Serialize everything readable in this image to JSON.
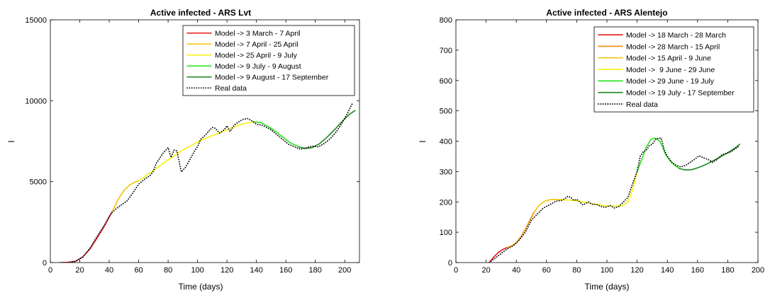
{
  "chart_data": [
    {
      "type": "line",
      "title": "Active infected - ARS Lvt",
      "xlabel": "Time (days)",
      "ylabel": "I",
      "xlim": [
        0,
        210
      ],
      "ylim": [
        0,
        15000
      ],
      "xticks": [
        0,
        20,
        40,
        60,
        80,
        100,
        120,
        140,
        160,
        180,
        200
      ],
      "yticks": [
        0,
        5000,
        10000,
        15000
      ],
      "legend_position": "top-right",
      "series": [
        {
          "name": "Model -> 3 March - 7 April",
          "color": "#e41a1c",
          "style": "solid",
          "x": [
            7,
            12,
            17,
            22,
            27,
            32,
            37,
            42
          ],
          "y": [
            0,
            15,
            80,
            350,
            850,
            1550,
            2300,
            3150
          ]
        },
        {
          "name": "Model -> 7 April - 25 April",
          "color": "#f2c400",
          "style": "solid",
          "x": [
            42,
            46,
            50,
            54,
            58,
            60
          ],
          "y": [
            3150,
            3900,
            4450,
            4800,
            5000,
            5050
          ]
        },
        {
          "name": "Model -> 25 April - 9 July",
          "color": "#f7f20a",
          "style": "solid",
          "x": [
            60,
            70,
            80,
            90,
            100,
            110,
            120,
            130,
            138
          ],
          "y": [
            5050,
            5700,
            6350,
            6950,
            7450,
            7850,
            8200,
            8550,
            8700
          ]
        },
        {
          "name": "Model -> 9 July - 9 August",
          "color": "#22e41a",
          "style": "solid",
          "x": [
            138,
            143,
            148,
            153,
            158,
            163,
            169
          ],
          "y": [
            8700,
            8650,
            8400,
            8100,
            7750,
            7400,
            7150
          ]
        },
        {
          "name": "Model -> 9 August - 17 September",
          "color": "#1b8a1b",
          "style": "solid",
          "x": [
            169,
            173,
            178,
            183,
            188,
            193,
            198,
            203,
            207
          ],
          "y": [
            7150,
            7050,
            7100,
            7350,
            7750,
            8200,
            8700,
            9150,
            9400
          ]
        },
        {
          "name": "Real data",
          "color": "#000000",
          "style": "dotted",
          "x": [
            7,
            12,
            17,
            22,
            27,
            32,
            37,
            40,
            42,
            45,
            48,
            52,
            56,
            60,
            64,
            68,
            70,
            72,
            74,
            76,
            78,
            80,
            82,
            84,
            86,
            88,
            89,
            92,
            95,
            98,
            100,
            102,
            105,
            108,
            110,
            112,
            115,
            118,
            120,
            122,
            125,
            128,
            131,
            134,
            137,
            140,
            143,
            146,
            150,
            154,
            158,
            162,
            166,
            170,
            174,
            178,
            182,
            186,
            190,
            194,
            198,
            202,
            205
          ],
          "y": [
            0,
            15,
            70,
            330,
            900,
            1650,
            2350,
            2850,
            3100,
            3350,
            3550,
            3800,
            4300,
            4850,
            5150,
            5400,
            5650,
            6150,
            6400,
            6700,
            6900,
            7100,
            6500,
            6950,
            6900,
            6000,
            5600,
            5900,
            6400,
            6900,
            7150,
            7600,
            7850,
            8150,
            8350,
            8300,
            8000,
            8200,
            8450,
            8100,
            8500,
            8700,
            8850,
            8900,
            8750,
            8550,
            8500,
            8400,
            8200,
            7900,
            7600,
            7300,
            7150,
            7000,
            7100,
            7200,
            7150,
            7350,
            7650,
            8050,
            8600,
            9250,
            9800
          ]
        }
      ]
    },
    {
      "type": "line",
      "title": "Active infected - ARS Alentejo",
      "xlabel": "Time (days)",
      "ylabel": "I",
      "xlim": [
        0,
        200
      ],
      "ylim": [
        0,
        800
      ],
      "xticks": [
        0,
        20,
        40,
        60,
        80,
        100,
        120,
        140,
        160,
        180,
        200
      ],
      "yticks": [
        0,
        100,
        200,
        300,
        400,
        500,
        600,
        700,
        800
      ],
      "legend_position": "top-right",
      "series": [
        {
          "name": "Model -> 18 March - 28 March",
          "color": "#e41a1c",
          "style": "solid",
          "x": [
            22,
            25,
            28,
            31,
            34
          ],
          "y": [
            0,
            18,
            33,
            43,
            50
          ]
        },
        {
          "name": "Model -> 28 March - 15 April",
          "color": "#f08a00",
          "style": "solid",
          "x": [
            34,
            37,
            40,
            43,
            46,
            49,
            52
          ],
          "y": [
            50,
            55,
            65,
            85,
            110,
            140,
            168
          ]
        },
        {
          "name": "Model -> 15 April - 9 June",
          "color": "#f2c400",
          "style": "solid",
          "x": [
            52,
            55,
            58,
            61,
            64,
            67,
            70
          ],
          "y": [
            168,
            188,
            200,
            206,
            208,
            207,
            207
          ]
        },
        {
          "name": "Model ->  9 June - 29 June",
          "color": "#f7f20a",
          "style": "solid",
          "x": [
            70,
            78,
            86,
            92,
            98,
            104,
            110,
            114,
            117,
            120
          ],
          "y": [
            207,
            205,
            198,
            192,
            188,
            186,
            188,
            200,
            240,
            300
          ]
        },
        {
          "name": "Model -> 29 June - 19 July",
          "color": "#22e41a",
          "style": "solid",
          "x": [
            120,
            123,
            126,
            129,
            131,
            133,
            135,
            137,
            139,
            142,
            145,
            148
          ],
          "y": [
            300,
            340,
            380,
            405,
            410,
            408,
            400,
            380,
            355,
            335,
            320,
            310
          ]
        },
        {
          "name": "Model -> 19 July - 17 September",
          "color": "#1b8a1b",
          "style": "solid",
          "x": [
            148,
            152,
            156,
            160,
            165,
            170,
            175,
            180,
            185,
            188
          ],
          "y": [
            310,
            305,
            306,
            312,
            322,
            335,
            348,
            362,
            378,
            390
          ]
        },
        {
          "name": "Real data",
          "color": "#000000",
          "style": "dotted",
          "x": [
            22,
            26,
            30,
            34,
            38,
            42,
            46,
            50,
            54,
            58,
            62,
            66,
            70,
            72,
            74,
            76,
            78,
            80,
            82,
            84,
            86,
            88,
            90,
            93,
            96,
            99,
            102,
            105,
            108,
            111,
            114,
            117,
            120,
            122,
            124,
            126,
            128,
            130,
            132,
            134,
            136,
            138,
            140,
            143,
            146,
            149,
            152,
            155,
            158,
            161,
            164,
            167,
            170,
            173,
            176,
            179,
            182,
            185,
            188
          ],
          "y": [
            0,
            15,
            30,
            45,
            55,
            75,
            100,
            140,
            160,
            180,
            190,
            202,
            205,
            210,
            218,
            215,
            205,
            208,
            200,
            190,
            195,
            200,
            192,
            192,
            185,
            182,
            188,
            180,
            185,
            200,
            215,
            260,
            300,
            350,
            365,
            370,
            385,
            390,
            405,
            410,
            410,
            370,
            350,
            330,
            320,
            315,
            320,
            330,
            340,
            352,
            345,
            340,
            330,
            340,
            355,
            360,
            365,
            375,
            385
          ]
        }
      ]
    }
  ]
}
